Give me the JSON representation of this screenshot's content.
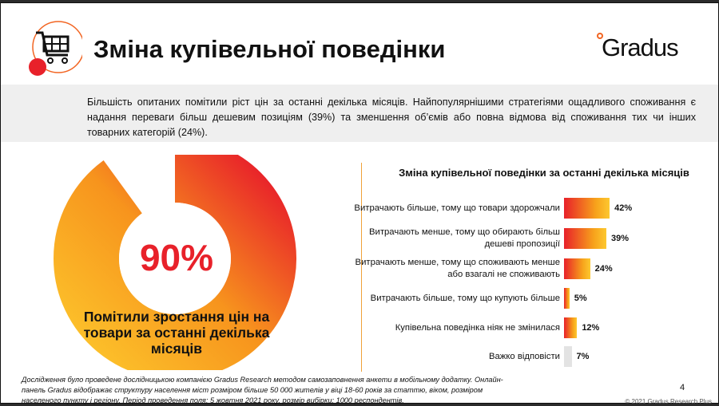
{
  "header": {
    "title": "Зміна купівельної поведінки",
    "logo_text": "Gradus",
    "icon": "shopping-cart-icon"
  },
  "summary": "Більшість опитаних помітили ріст цін за останні декілька місяців. Найпопулярнішими стратегіями ощадливого споживання є надання переваги більш дешевим позиціям (39%) та зменшення об’ємів або повна відмова від споживання тих чи інших товарних категорій (24%).",
  "donut": {
    "value_label": "90%",
    "value": 90,
    "label": "Помітили зростання цін на товари за останні декілька місяців"
  },
  "chart_data": {
    "type": "bar",
    "orientation": "horizontal",
    "title": "Зміна купівельної поведінки за останні декілька місяців",
    "categories": [
      "Витрачають більше, тому що товари здорожчали",
      "Витрачають менше, тому що обирають більш дешеві пропозиції",
      "Витрачають менше, тому що споживають менше або взагалі не споживають",
      "Витрачають більше, тому що купують більше",
      "Купівельна поведінка ніяк не змінилася",
      "Важко відповісти"
    ],
    "values": [
      42,
      39,
      24,
      5,
      12,
      7
    ],
    "value_labels": [
      "42%",
      "39%",
      "24%",
      "5%",
      "12%",
      "7%"
    ],
    "colors": {
      "bar_gradient": [
        "#e8212a",
        "#fdc82f"
      ],
      "neutral": "#e3e3e3"
    }
  },
  "footer": {
    "note": "Дослідження було проведене дослідницькою компанією Gradus Research методом самозаповнення анкети в мобільному додатку. Онлайн-панель Gradus відображає структуру населення міст розміром більше 50 000 жителів у віці 18-60 років за статтю, віком, розміром населеного пункту і регіону. Період проведення поля: 5 жовтня 2021 року, розмір вибірки: 1000 респондентів.",
    "page": "4",
    "copyright": "© 2021 Gradus Research Plus"
  }
}
